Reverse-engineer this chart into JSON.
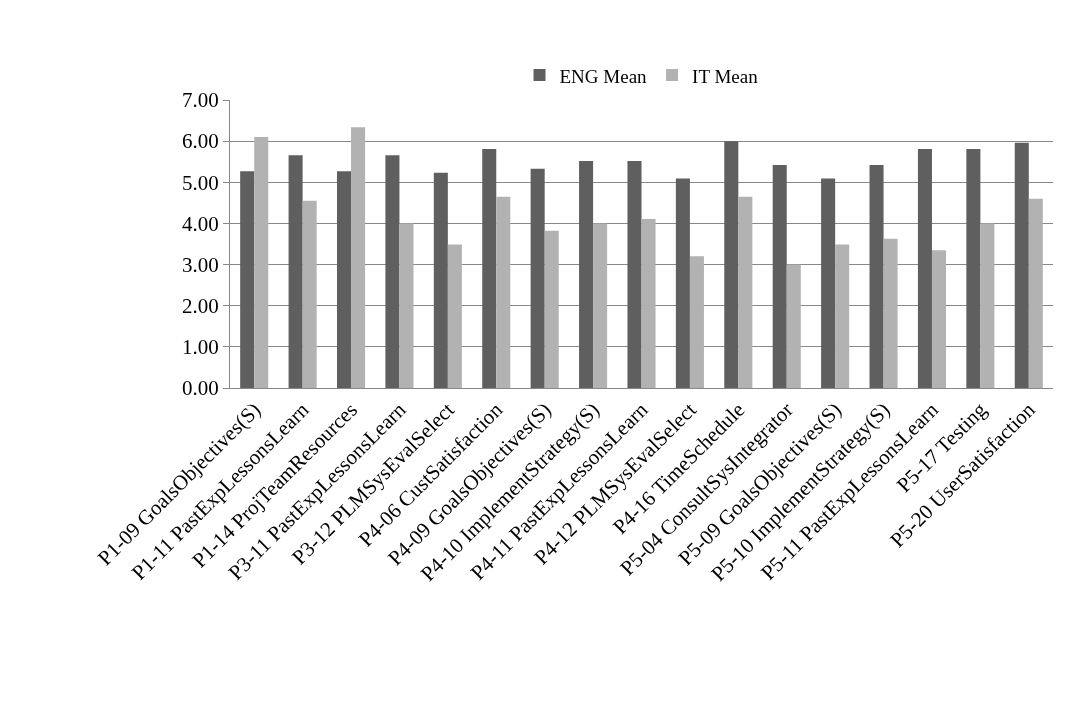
{
  "chart_data": {
    "type": "bar",
    "categories": [
      "P1-09 GoalsObjectives(S)",
      "P1-11 PastExpLessonsLearn",
      "P1-14 ProjTeamResources",
      "P3-11 PastExpLessonsLearn",
      "P3-12 PLMSysEvalSelect",
      "P4-06 CustSatisfaction",
      "P4-09 GoalsObjectives(S)",
      "P4-10 ImplementStrategy(S)",
      "P4-11 PastExpLessonsLearn",
      "P4-12 PLMSysEvalSelect",
      "P4-16 TimeSchedule",
      "P5-04 ConsultSysIntegrator",
      "P5-09 GoalsObjectives(S)",
      "P5-10 ImplementStrategy(S)",
      "P5-11 PastExpLessonsLearn",
      "P5-17 Testing",
      "P5-20 UserSatisfaction"
    ],
    "series": [
      {
        "name": "ENG Mean",
        "color": "#5f5f5f",
        "values": [
          5.27,
          5.66,
          5.27,
          5.66,
          5.23,
          5.81,
          5.33,
          5.52,
          5.52,
          5.09,
          6.0,
          5.42,
          5.09,
          5.42,
          5.81,
          5.81,
          5.96
        ]
      },
      {
        "name": "IT Mean",
        "color": "#b2b2b2",
        "values": [
          6.1,
          4.55,
          6.34,
          4.0,
          3.49,
          4.65,
          3.82,
          4.0,
          4.11,
          3.2,
          4.65,
          3.0,
          3.49,
          3.63,
          3.35,
          4.0,
          4.6
        ]
      }
    ],
    "ylim": [
      0,
      7
    ],
    "yticks": [
      {
        "value": 0,
        "label": "0.00"
      },
      {
        "value": 1,
        "label": "1.00"
      },
      {
        "value": 2,
        "label": "2.00"
      },
      {
        "value": 3,
        "label": "3.00"
      },
      {
        "value": 4,
        "label": "4.00"
      },
      {
        "value": 5,
        "label": "5.00"
      },
      {
        "value": 6,
        "label": "6.00"
      },
      {
        "value": 7,
        "label": "7.00"
      }
    ],
    "grid": "y",
    "legend": "top"
  }
}
